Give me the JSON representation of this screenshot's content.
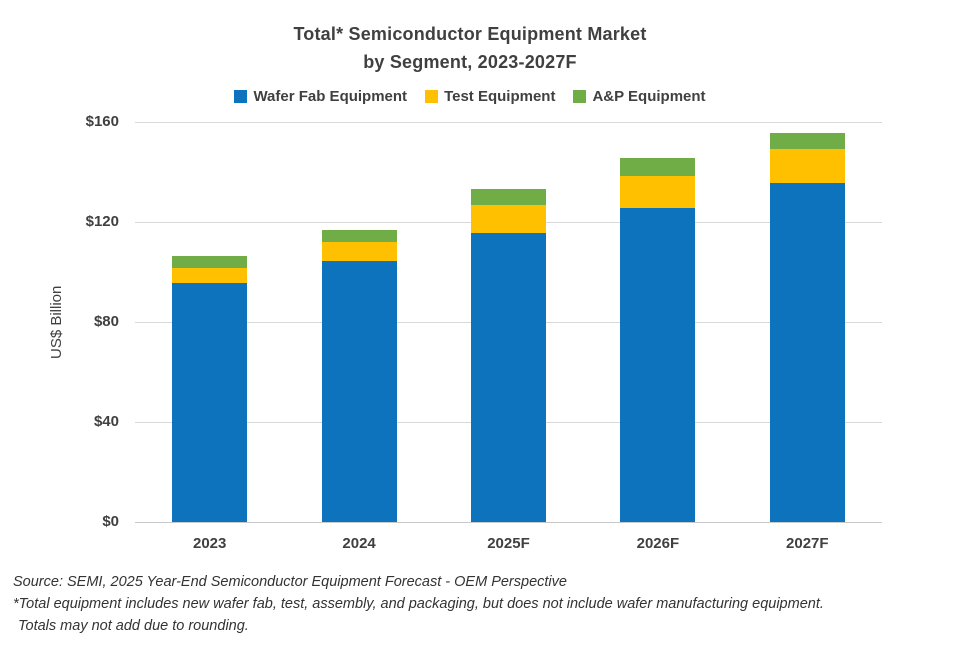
{
  "header": {
    "title_line1": "Total* Semiconductor Equipment Market",
    "title_line2": "by Segment, 2023-2027F"
  },
  "footer": {
    "line1": "Source: SEMI, 2025 Year-End Semiconductor Equipment Forecast - OEM Perspective",
    "line2": "*Total equipment includes new wafer fab, test, assembly, and packaging, but does not include wafer manufacturing equipment.",
    "line3": "Totals may not add due to rounding."
  },
  "chart_data": {
    "type": "bar",
    "stacked": true,
    "title": "Total* Semiconductor Equipment Market",
    "subtitle": "by Segment, 2023-2027F",
    "xlabel": "",
    "ylabel": "US$ Billion",
    "categories": [
      "2023",
      "2024",
      "2025F",
      "2026F",
      "2027F"
    ],
    "series": [
      {
        "name": "Wafer Fab Equipment",
        "color": "#0e73bd",
        "values": [
          95.6,
          104.6,
          115.5,
          125.7,
          135.5
        ]
      },
      {
        "name": "Test Equipment",
        "color": "#ffc000",
        "values": [
          6.0,
          7.6,
          11.2,
          12.7,
          13.6
        ]
      },
      {
        "name": "A&P Equipment",
        "color": "#70ad47",
        "values": [
          4.8,
          4.6,
          6.5,
          7.1,
          6.6
        ]
      }
    ],
    "totals": [
      106.4,
      116.8,
      133.2,
      145.5,
      155.7
    ],
    "ylim": [
      0,
      160
    ],
    "yticks": [
      {
        "value": 0,
        "label": "$0"
      },
      {
        "value": 40,
        "label": "$40"
      },
      {
        "value": 80,
        "label": "$80"
      },
      {
        "value": 120,
        "label": "$120"
      },
      {
        "value": 160,
        "label": "$160"
      }
    ],
    "grid": true,
    "legend_position": "top"
  },
  "colors": {
    "text": "#404040",
    "gridline": "#d9d9d9",
    "background": "#ffffff"
  }
}
